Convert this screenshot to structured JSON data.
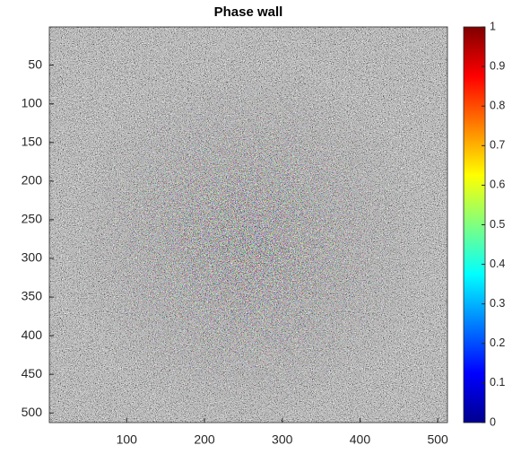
{
  "chart_data": {
    "type": "image",
    "title": "Phase wall",
    "xlim": [
      0.5,
      512.5
    ],
    "xticks": [
      100,
      200,
      300,
      400,
      500
    ],
    "ylim": [
      0.5,
      512.5
    ],
    "yticks": [
      50,
      100,
      150,
      200,
      250,
      300,
      350,
      400,
      450,
      500
    ],
    "y_reversed": true,
    "colormap": "jet",
    "clim": [
      0,
      1
    ],
    "cticks": [
      0,
      0.1,
      0.2,
      0.3,
      0.4,
      0.5,
      0.6,
      0.7,
      0.8,
      0.9,
      1
    ]
  }
}
